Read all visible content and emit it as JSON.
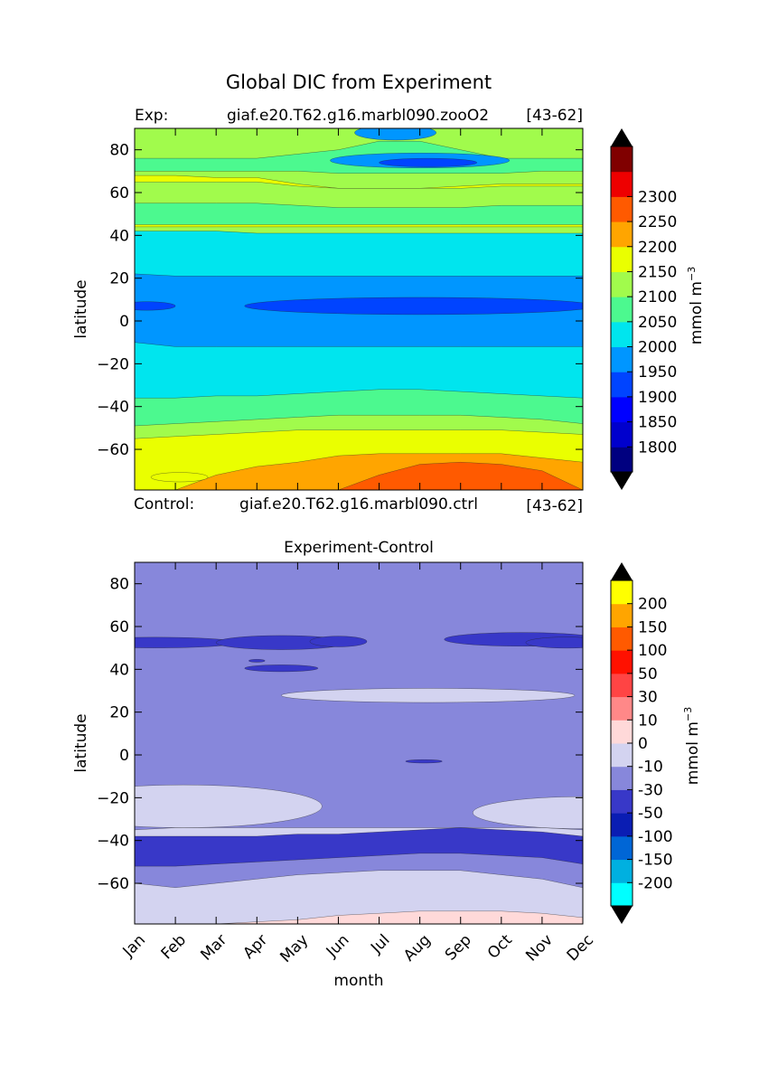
{
  "figure": {
    "suptitle": "Global DIC from Experiment",
    "xlabel": "month",
    "exp_label": "Exp:",
    "exp_case": "giaf.e20.T62.g16.marbl090.zooO2",
    "exp_years": "[43-62]",
    "ctrl_label": "Control:",
    "ctrl_case": "giaf.e20.T62.g16.marbl090.ctrl",
    "ctrl_years": "[43-62]"
  },
  "chart_data": [
    {
      "type": "heatmap",
      "name": "experiment",
      "title": "",
      "xlabel": "",
      "ylabel": "latitude",
      "xlim": [
        0,
        11
      ],
      "ylim": [
        -79,
        90
      ],
      "xticks": [],
      "yticks": [
        80,
        60,
        40,
        20,
        0,
        -20,
        -40,
        -60
      ],
      "colorbar": {
        "label": "mmol m",
        "label_sup": "−3",
        "levels": [
          1750,
          1800,
          1850,
          1900,
          1950,
          2000,
          2050,
          2100,
          2150,
          2200,
          2250,
          2300,
          2350
        ],
        "colors": [
          "#000080",
          "#0000cd",
          "#0000ff",
          "#0044ff",
          "#0096ff",
          "#00e5ee",
          "#4cf98f",
          "#a1fb4c",
          "#eaff00",
          "#ffa500",
          "#ff5a00",
          "#ee0000",
          "#800000"
        ],
        "tick_labels": [
          "1800",
          "1850",
          "1900",
          "1950",
          "2000",
          "2050",
          "2100",
          "2150",
          "2200",
          "2250",
          "2300"
        ],
        "extend": "both",
        "under_color": "#000000",
        "over_color": "#000000"
      },
      "bands": [
        {
          "ys": [
            90,
            90,
            90,
            90,
            90,
            90,
            90,
            90,
            90,
            90,
            90,
            90
          ],
          "color": "#a1fb4c"
        },
        {
          "ys": [
            76,
            76,
            76,
            76,
            78,
            80,
            84,
            84,
            80,
            76,
            76,
            76
          ],
          "color": "#4cf98f"
        },
        {
          "ys": [
            70,
            70,
            70,
            70,
            70,
            69,
            69,
            69,
            69,
            69,
            70,
            70
          ],
          "color": "#a1fb4c"
        },
        {
          "ys": [
            68,
            68,
            67,
            67,
            64,
            62,
            62,
            62,
            63,
            64,
            64,
            64
          ],
          "color": "#eaff00"
        },
        {
          "ys": [
            65,
            65,
            65,
            65,
            63,
            62,
            62,
            62,
            62,
            63,
            63,
            63
          ],
          "color": "#a1fb4c"
        },
        {
          "ys": [
            55,
            55,
            55,
            55,
            54,
            53,
            53,
            53,
            53,
            54,
            54,
            54
          ],
          "color": "#4cf98f"
        },
        {
          "ys": [
            45,
            45,
            45,
            45,
            45,
            45,
            45,
            45,
            45,
            45,
            45,
            45
          ],
          "color": "#eaff00"
        },
        {
          "ys": [
            44,
            44,
            44,
            44,
            44,
            44,
            44,
            44,
            44,
            44,
            44,
            44
          ],
          "color": "#a1fb4c"
        },
        {
          "ys": [
            42,
            42,
            42,
            41,
            41,
            41,
            41,
            41,
            41,
            41,
            41,
            41
          ],
          "color": "#00e5ee"
        },
        {
          "ys": [
            22,
            21,
            21,
            21,
            21,
            21,
            21,
            21,
            21,
            21,
            21,
            21
          ],
          "color": "#0096ff"
        },
        {
          "ys": [
            -10,
            -12,
            -12,
            -12,
            -12,
            -12,
            -12,
            -12,
            -12,
            -12,
            -12,
            -12
          ],
          "color": "#00e5ee"
        },
        {
          "ys": [
            -36,
            -36,
            -35,
            -35,
            -34,
            -33,
            -32,
            -32,
            -33,
            -34,
            -35,
            -36
          ],
          "color": "#4cf98f"
        },
        {
          "ys": [
            -49,
            -48,
            -47,
            -46,
            -45,
            -44,
            -44,
            -44,
            -44,
            -45,
            -46,
            -48
          ],
          "color": "#a1fb4c"
        },
        {
          "ys": [
            -55,
            -54,
            -53,
            -52,
            -51,
            -51,
            -51,
            -51,
            -51,
            -51,
            -52,
            -53
          ],
          "color": "#eaff00"
        },
        {
          "ys": [
            -79,
            -79,
            -72,
            -68,
            -66,
            -63,
            -62,
            -62,
            -62,
            -62,
            -64,
            -66
          ],
          "color": "#ffa500"
        },
        {
          "ys": [
            -79,
            -79,
            -79,
            -79,
            -79,
            -79,
            -72,
            -67,
            -66,
            -67,
            -70,
            -79
          ],
          "color": "#ff5a00"
        }
      ],
      "blobs": [
        {
          "cx": 7.0,
          "cy": 75,
          "rx": 2.2,
          "ry": 3.5,
          "color": "#0096ff"
        },
        {
          "cx": 7.2,
          "cy": 74,
          "rx": 1.2,
          "ry": 2,
          "color": "#0044ff"
        },
        {
          "cx": 6.4,
          "cy": 88,
          "rx": 1.0,
          "ry": 3.5,
          "color": "#0096ff"
        },
        {
          "cx": 0.3,
          "cy": 7,
          "rx": 0.7,
          "ry": 2,
          "color": "#0044ff"
        },
        {
          "cx": 7.0,
          "cy": 7,
          "rx": 4.3,
          "ry": 4,
          "color": "#0044ff"
        },
        {
          "cx": 1.1,
          "cy": -73,
          "rx": 0.7,
          "ry": 2.2,
          "color": "#eaff00"
        }
      ]
    },
    {
      "type": "heatmap",
      "name": "experiment-minus-control",
      "title": "Experiment-Control",
      "xlabel": "month",
      "ylabel": "latitude",
      "xlim": [
        0,
        11
      ],
      "ylim": [
        -79,
        90
      ],
      "xticks": [
        "Jan",
        "Feb",
        "Mar",
        "Apr",
        "May",
        "Jun",
        "Jul",
        "Aug",
        "Sep",
        "Oct",
        "Nov",
        "Dec"
      ],
      "yticks": [
        80,
        60,
        40,
        20,
        0,
        -20,
        -40,
        -60
      ],
      "colorbar": {
        "label": "mmol m",
        "label_sup": "−3",
        "levels": [
          -250,
          -200,
          -150,
          -100,
          -50,
          -30,
          -10,
          0,
          10,
          30,
          50,
          100,
          150,
          200,
          250
        ],
        "colors": [
          "#00ffff",
          "#00b0e0",
          "#0066d6",
          "#0a1db3",
          "#3838c8",
          "#8787db",
          "#d3d3f0",
          "#ffd9d9",
          "#ff8888",
          "#ff4444",
          "#ff1100",
          "#ff5a00",
          "#ffa500",
          "#ffff00"
        ],
        "tick_labels": [
          "200",
          "150",
          "100",
          "50",
          "30",
          "10",
          "0",
          "-10",
          "-30",
          "-50",
          "-100",
          "-150",
          "-200"
        ],
        "extend": "both",
        "under_color": "#000000",
        "over_color": "#000000"
      },
      "bands": [
        {
          "ys": [
            90,
            90,
            90,
            90,
            90,
            90,
            90,
            90,
            90,
            90,
            90,
            90
          ],
          "color": "#8787db"
        },
        {
          "ys": [
            -35,
            -34,
            -34,
            -34,
            -34,
            -34,
            -34,
            -34,
            -34,
            -34,
            -34,
            -35
          ],
          "color": "#d3d3f0"
        },
        {
          "ys": [
            -38,
            -38,
            -38,
            -38,
            -37,
            -37,
            -36,
            -35,
            -34,
            -35,
            -36,
            -38
          ],
          "color": "#3838c8"
        },
        {
          "ys": [
            -52,
            -52,
            -51,
            -50,
            -49,
            -48,
            -47,
            -46,
            -46,
            -47,
            -48,
            -51
          ],
          "color": "#8787db"
        },
        {
          "ys": [
            -60,
            -62,
            -60,
            -58,
            -56,
            -55,
            -54,
            -54,
            -54,
            -56,
            -58,
            -62
          ],
          "color": "#d3d3f0"
        },
        {
          "ys": [
            -79,
            -79,
            -79,
            -78,
            -77,
            -75,
            -74,
            -73,
            -73,
            -73,
            -74,
            -76
          ],
          "color": "#ffd9d9"
        }
      ],
      "blobs": [
        {
          "cx": 0.5,
          "cy": 52.5,
          "rx": 2.0,
          "ry": 2.5,
          "color": "#3838c8"
        },
        {
          "cx": 3.6,
          "cy": 52.5,
          "rx": 1.6,
          "ry": 3.3,
          "color": "#3838c8"
        },
        {
          "cx": 5.0,
          "cy": 53,
          "rx": 0.7,
          "ry": 2.5,
          "color": "#3838c8"
        },
        {
          "cx": 9.5,
          "cy": 54,
          "rx": 1.9,
          "ry": 3.2,
          "color": "#3838c8"
        },
        {
          "cx": 10.6,
          "cy": 52.5,
          "rx": 1.0,
          "ry": 2.6,
          "color": "#3838c8"
        },
        {
          "cx": 3.6,
          "cy": 40.5,
          "rx": 0.9,
          "ry": 1.6,
          "color": "#3838c8"
        },
        {
          "cx": 3.0,
          "cy": 44,
          "rx": 0.2,
          "ry": 0.7,
          "color": "#3838c8"
        },
        {
          "cx": 7.2,
          "cy": 27.8,
          "rx": 3.6,
          "ry": 3.3,
          "color": "#d3d3f0"
        },
        {
          "cx": 7.1,
          "cy": -3,
          "rx": 0.45,
          "ry": 0.8,
          "color": "#3838c8"
        },
        {
          "cx": 1.2,
          "cy": -24,
          "rx": 3.4,
          "ry": 10,
          "color": "#d3d3f0"
        },
        {
          "cx": 11.0,
          "cy": -27,
          "rx": 2.7,
          "ry": 7.5,
          "color": "#d3d3f0"
        }
      ]
    }
  ]
}
